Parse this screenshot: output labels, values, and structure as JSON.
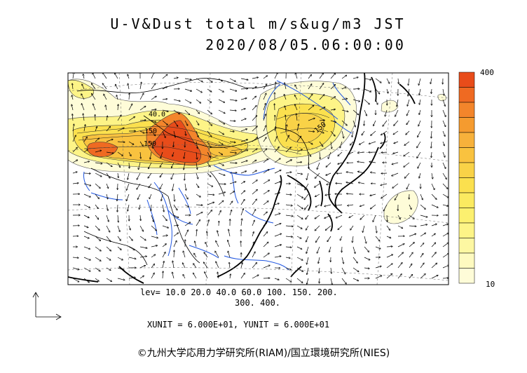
{
  "title_line1": "U-V&Dust total m/s&ug/m3 JST",
  "title_line2": "2020/08/05.06:00:00",
  "levels_line1": "lev= 10.0 20.0 40.0 60.0 100. 150. 200.",
  "levels_line2": "300. 400.",
  "units_text": "XUNIT = 6.000E+01, YUNIT = 6.000E+01",
  "colorbar": {
    "max_label": "400",
    "min_label": "10",
    "colors": [
      "#e84c1a",
      "#ef6a22",
      "#f3852b",
      "#f59b2f",
      "#f7b13b",
      "#f9c23f",
      "#f9d247",
      "#fbe04e",
      "#fbea60",
      "#fcf06f",
      "#fdf487",
      "#fdf7a2",
      "#fefac0",
      "#fefcd8"
    ]
  },
  "contour_labels": [
    "40.0",
    "150",
    "150",
    "150"
  ],
  "copyright": "©九州大学応用力学研究所(RIAM)/国立環境研究所(NIES)"
}
